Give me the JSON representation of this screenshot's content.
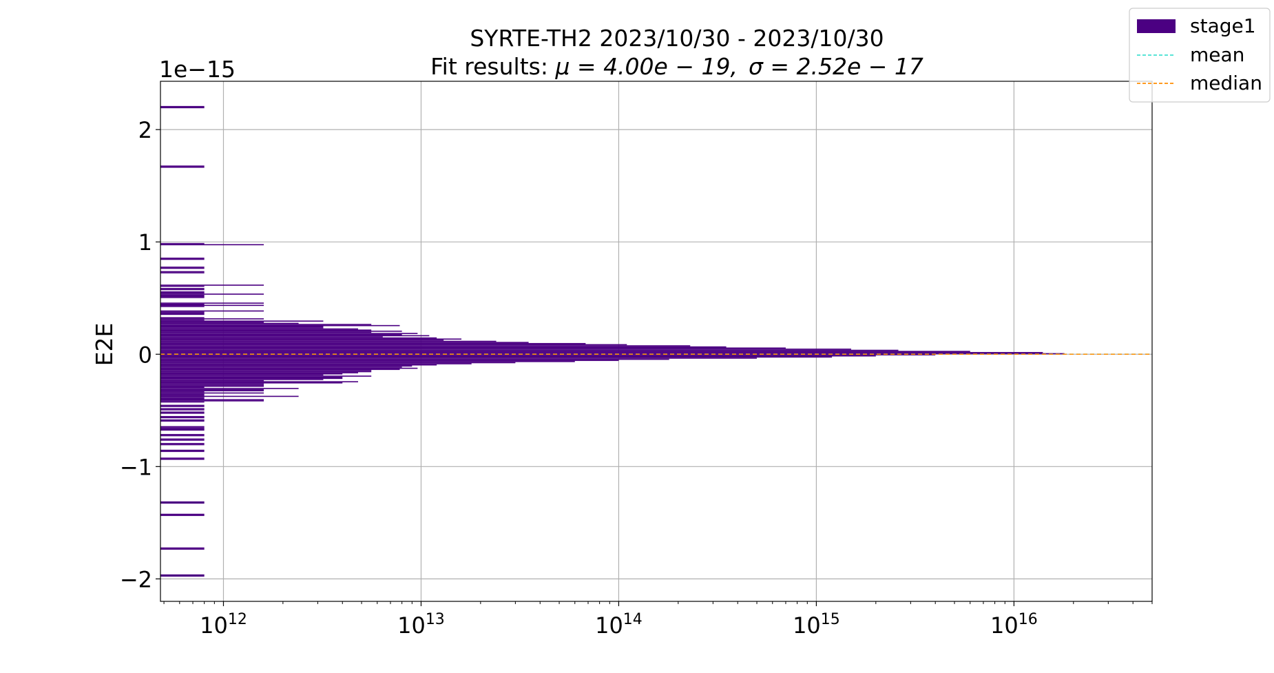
{
  "chart_data": {
    "type": "bar",
    "orientation": "horizontal",
    "title": "SYRTE-TH2 2023/10/30 - 2023/10/30",
    "subtitle_prefix": "Fit results: ",
    "subtitle_mu": "μ = 4.00e − 19,",
    "subtitle_sigma": "σ = 2.52e − 17",
    "xlabel": "",
    "ylabel": "E2E",
    "y_offset_label": "1e−15",
    "xscale": "log",
    "xlim": [
      480000000000,
      50000000000000000
    ],
    "ylim": [
      -2.2,
      2.43
    ],
    "x_ticks": [
      {
        "base": "10",
        "exp": "12"
      },
      {
        "base": "10",
        "exp": "13"
      },
      {
        "base": "10",
        "exp": "14"
      },
      {
        "base": "10",
        "exp": "15"
      },
      {
        "base": "10",
        "exp": "16"
      }
    ],
    "y_ticks": [
      "2",
      "1",
      "0",
      "−1",
      "−2"
    ],
    "grid": true,
    "legend_position": "top-right",
    "legend": [
      {
        "label": "stage1",
        "kind": "patch",
        "color": "#4b0082"
      },
      {
        "label": "mean",
        "kind": "dashed",
        "color": "#40e0d0"
      },
      {
        "label": "median",
        "kind": "dashed",
        "color": "#ff8c00"
      }
    ],
    "series": [
      {
        "name": "stage1",
        "color": "#4b0082",
        "bins_y_upper_e15": [
          2.21,
          2.2,
          1.68,
          1.67,
          0.99,
          0.98,
          0.86,
          0.85,
          0.78,
          0.77,
          0.74,
          0.73,
          0.62,
          0.61,
          0.59,
          0.58,
          0.56,
          0.55,
          0.54,
          0.53,
          0.52,
          0.51,
          0.46,
          0.45,
          0.44,
          0.43,
          0.39,
          0.38,
          0.37,
          0.36,
          0.33,
          0.32,
          0.31,
          0.3,
          0.29,
          0.28,
          0.27,
          0.26,
          0.25,
          0.24,
          0.23,
          0.22,
          0.21,
          0.2,
          0.19,
          0.18,
          0.17,
          0.16,
          0.15,
          0.14,
          0.13,
          0.12,
          0.11,
          0.1,
          0.09,
          0.08,
          0.07,
          0.06,
          0.05,
          0.04,
          0.03,
          0.02,
          0.01,
          0,
          -0.01,
          -0.02,
          -0.03,
          -0.04,
          -0.05,
          -0.06,
          -0.07,
          -0.08,
          -0.09,
          -0.1,
          -0.11,
          -0.12,
          -0.13,
          -0.14,
          -0.15,
          -0.16,
          -0.17,
          -0.18,
          -0.19,
          -0.2,
          -0.21,
          -0.22,
          -0.23,
          -0.24,
          -0.25,
          -0.26,
          -0.27,
          -0.28,
          -0.29,
          -0.3,
          -0.31,
          -0.32,
          -0.33,
          -0.34,
          -0.35,
          -0.36,
          -0.37,
          -0.38,
          -0.39,
          -0.4,
          -0.41,
          -0.42,
          -0.45,
          -0.46,
          -0.48,
          -0.49,
          -0.51,
          -0.52,
          -0.55,
          -0.56,
          -0.58,
          -0.59,
          -0.64,
          -0.65,
          -0.66,
          -0.67,
          -0.71,
          -0.72,
          -0.75,
          -0.76,
          -0.79,
          -0.8,
          -0.85,
          -0.86,
          -0.92,
          -0.93,
          -1.31,
          -1.32,
          -1.42,
          -1.43,
          -1.72,
          -1.73,
          -1.96,
          -1.97
        ],
        "bins_count": [
          800000000000,
          800000000000,
          800000000000,
          800000000000,
          800000000000,
          1600000000000,
          800000000000,
          800000000000,
          800000000000,
          800000000000,
          800000000000,
          800000000000,
          1600000000000,
          800000000000,
          800000000000,
          800000000000,
          800000000000,
          800000000000,
          1600000000000,
          800000000000,
          800000000000,
          800000000000,
          1600000000000,
          800000000000,
          1600000000000,
          800000000000,
          1600000000000,
          800000000000,
          800000000000,
          800000000000,
          800000000000,
          1600000000000,
          800000000000,
          3200000000000,
          1600000000000,
          2400000000000,
          5600000000000,
          7800000000000,
          3200000000000,
          3200000000000,
          4800000000000,
          5600000000000,
          8000000000000,
          5600000000000,
          9600000000000,
          8000000000000,
          11000000000000,
          6400000000000,
          12000000000000,
          16000000000000,
          13000000000000,
          24000000000000,
          35000000000000,
          68000000000000,
          110000000000000,
          230000000000000,
          350000000000000,
          700000000000000,
          1500000000000000,
          2600000000000000,
          6000000000000000,
          14000000000000000,
          18000000000000000,
          4000000000000000,
          2000000000000000,
          1200000000000000,
          500000000000000,
          180000000000000,
          100000000000000,
          60000000000000,
          30000000000000,
          18000000000000,
          12000000000000,
          9000000000000,
          8000000000000,
          9600000000000,
          7800000000000,
          5600000000000,
          5600000000000,
          4800000000000,
          4000000000000,
          3200000000000,
          5600000000000,
          4000000000000,
          4000000000000,
          3200000000000,
          1600000000000,
          4800000000000,
          4000000000000,
          1600000000000,
          1600000000000,
          1600000000000,
          800000000000,
          2400000000000,
          1600000000000,
          1600000000000,
          800000000000,
          1600000000000,
          800000000000,
          800000000000,
          2400000000000,
          800000000000,
          800000000000,
          1600000000000,
          1600000000000,
          800000000000,
          800000000000,
          800000000000,
          800000000000,
          800000000000,
          800000000000,
          800000000000,
          800000000000,
          800000000000,
          800000000000,
          800000000000,
          800000000000,
          800000000000,
          800000000000,
          800000000000,
          800000000000,
          800000000000,
          800000000000,
          800000000000,
          800000000000,
          800000000000,
          800000000000,
          800000000000,
          800000000000,
          800000000000,
          800000000000,
          800000000000,
          800000000000,
          800000000000,
          800000000000,
          800000000000,
          800000000000,
          800000000000
        ]
      }
    ],
    "mean_e15": 0.0004,
    "median_e15": 0.0
  }
}
